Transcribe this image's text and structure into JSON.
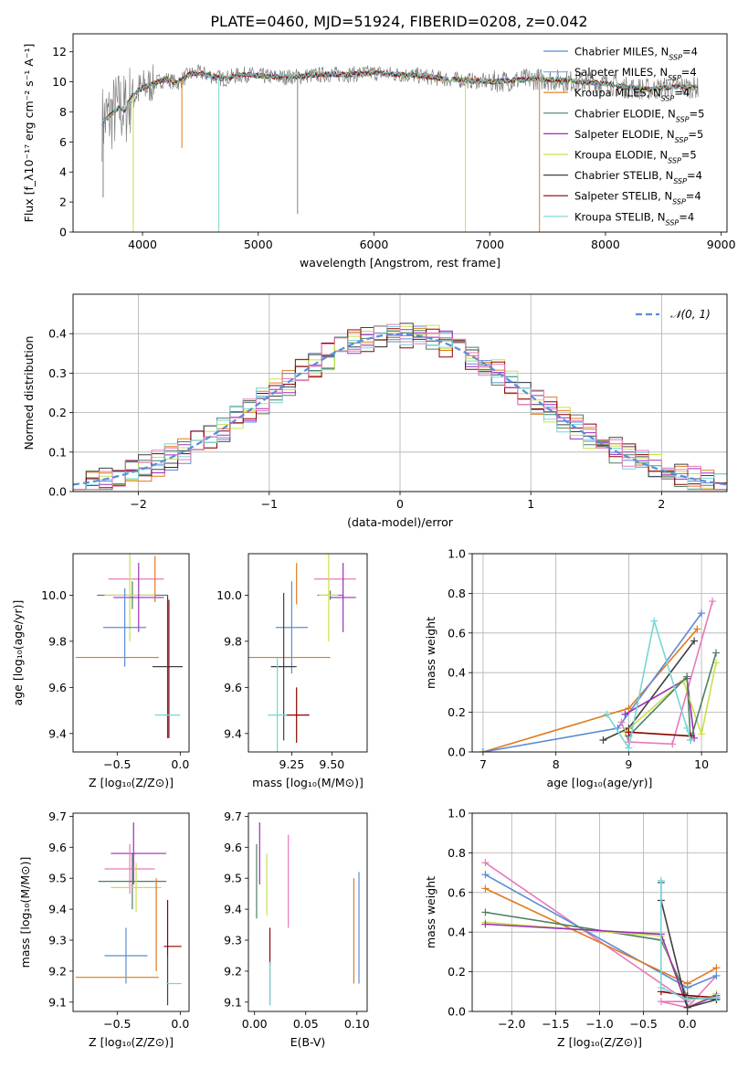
{
  "figure_title": "PLATE=0460, MJD=51924, FIBERID=0208, z=0.042",
  "colors": {
    "chabrier_miles": "#5b8bd8",
    "salpeter_miles": "#7fb2ea",
    "kroupa_miles": "#e07a1f",
    "chabrier_elodie": "#4f7f63",
    "salpeter_elodie": "#9b2fb8",
    "kroupa_elodie": "#c9e14a",
    "chabrier_stelib": "#404040",
    "salpeter_stelib": "#8b0000",
    "kroupa_stelib": "#76d6d6",
    "pink": "#e67ab8",
    "data": "#808080",
    "grid": "#b0b0b0"
  },
  "chart_data": [
    {
      "id": "spectrum",
      "type": "line",
      "title": "PLATE=0460, MJD=51924, FIBERID=0208, z=0.042",
      "xlabel": "wavelength [Angstrom, rest frame]",
      "ylabel": "Flux [f_λ10⁻¹⁷ erg cm⁻² s⁻¹ A⁻¹]",
      "xlim": [
        3400,
        9050
      ],
      "ylim": [
        0,
        13.2
      ],
      "xticks": [
        4000,
        5000,
        6000,
        7000,
        8000,
        9000
      ],
      "yticks": [
        0,
        2,
        4,
        6,
        8,
        10,
        12
      ],
      "grid": false,
      "legend_position": "top-right",
      "legend": [
        {
          "label": "Chabrier MILES, N",
          "sub": "SSP",
          "tail": "=4",
          "color": "#5b8bd8"
        },
        {
          "label": "Salpeter MILES, N",
          "sub": "SSP",
          "tail": "=4",
          "color": "#7fb2ea"
        },
        {
          "label": "Kroupa MILES, N",
          "sub": "SSP",
          "tail": "=4",
          "color": "#e07a1f"
        },
        {
          "label": "Chabrier ELODIE, N",
          "sub": "SSP",
          "tail": "=5",
          "color": "#4f7f63"
        },
        {
          "label": "Salpeter ELODIE, N",
          "sub": "SSP",
          "tail": "=5",
          "color": "#9b2fb8"
        },
        {
          "label": "Kroupa ELODIE, N",
          "sub": "SSP",
          "tail": "=5",
          "color": "#c9e14a"
        },
        {
          "label": "Chabrier STELIB, N",
          "sub": "SSP",
          "tail": "=4",
          "color": "#404040"
        },
        {
          "label": "Salpeter STELIB, N",
          "sub": "SSP",
          "tail": "=4",
          "color": "#8b0000"
        },
        {
          "label": "Kroupa STELIB, N",
          "sub": "SSP",
          "tail": "=4",
          "color": "#76d6d6"
        }
      ],
      "continuum": {
        "x": [
          3650,
          3700,
          3800,
          3850,
          3900,
          4000,
          4100,
          4200,
          4300,
          4400,
          4500,
          4600,
          4700,
          4800,
          4900,
          5000,
          5200,
          5400,
          5600,
          5800,
          6000,
          6200,
          6400,
          6600,
          6800,
          7000,
          7200,
          7400,
          7600,
          7800,
          8000,
          8200,
          8400,
          8600,
          8800
        ],
        "y": [
          7.3,
          7.6,
          8.3,
          8.1,
          9.0,
          9.6,
          9.9,
          10.2,
          9.9,
          10.5,
          10.6,
          10.4,
          10.2,
          10.4,
          10.5,
          10.4,
          10.3,
          10.4,
          10.5,
          10.5,
          10.6,
          10.5,
          10.4,
          10.2,
          10.1,
          10.0,
          10.1,
          10.2,
          10.1,
          10.0,
          9.9,
          9.6,
          9.5,
          9.7,
          9.6
        ]
      },
      "absorption_spikes": [
        {
          "x": 3660,
          "y": 2.3
        },
        {
          "x": 3920,
          "y": 0
        },
        {
          "x": 4340,
          "y": 5.6
        },
        {
          "x": 4660,
          "y": 0
        },
        {
          "x": 5340,
          "y": 1.2
        },
        {
          "x": 6790,
          "y": 0
        },
        {
          "x": 7430,
          "y": 0
        }
      ]
    },
    {
      "id": "residuals",
      "type": "histogram",
      "xlabel": "(data-model)/error",
      "ylabel": "Normed distribution",
      "xlim": [
        -2.5,
        2.5
      ],
      "ylim": [
        0,
        0.5
      ],
      "xticks": [
        -2,
        -1,
        0,
        1,
        2
      ],
      "yticks": [
        0.0,
        0.1,
        0.2,
        0.3,
        0.4
      ],
      "grid": true,
      "legend_position": "top-right",
      "reference_curve": {
        "label": "𝒩(0, 1)",
        "mean": 0,
        "sigma": 1
      },
      "bins": {
        "start": -2.5,
        "width": 0.1,
        "count": 50
      },
      "series_colors": [
        "#5b8bd8",
        "#e07a1f",
        "#4f7f63",
        "#9b2fb8",
        "#c9e14a",
        "#404040",
        "#8b0000",
        "#76d6d6",
        "#e67ab8"
      ]
    },
    {
      "id": "age_vs_Z",
      "type": "errorbar",
      "xlabel": "Z [log₁₀(Z/Z⊙)]",
      "ylabel": "age  [log₁₀(age/yr)]",
      "xlim": [
        -0.85,
        0.07
      ],
      "ylim": [
        9.32,
        10.18
      ],
      "xticks": [
        -0.5,
        0.0
      ],
      "yticks": [
        9.4,
        9.6,
        9.8,
        10.0
      ],
      "points": [
        {
          "x": -0.35,
          "xerr": 0.22,
          "y": 10.07,
          "yerr": 0.0,
          "color": "#e67ab8"
        },
        {
          "x": -0.2,
          "xerr": 0.0,
          "y": 10.07,
          "yerr": 0.1,
          "color": "#e07a1f"
        },
        {
          "x": -0.38,
          "xerr": 0.28,
          "y": 10.0,
          "yerr": 0.06,
          "color": "#4f7f63"
        },
        {
          "x": -0.4,
          "xerr": 0.2,
          "y": 10.0,
          "yerr": 0.2,
          "color": "#c9e14a"
        },
        {
          "x": -0.33,
          "xerr": 0.2,
          "y": 9.99,
          "yerr": 0.15,
          "color": "#9b2fb8"
        },
        {
          "x": -0.44,
          "xerr": 0.17,
          "y": 9.86,
          "yerr": 0.17,
          "color": "#5b8bd8"
        },
        {
          "x": -0.5,
          "xerr": 0.33,
          "y": 9.73,
          "yerr": 0.0,
          "color": "#e07a1f"
        },
        {
          "x": -0.1,
          "xerr": 0.12,
          "y": 9.69,
          "yerr": 0.31,
          "color": "#404040"
        },
        {
          "x": -0.09,
          "xerr": 0.0,
          "y": 9.68,
          "yerr": 0.3,
          "color": "#8b0000"
        },
        {
          "x": -0.1,
          "xerr": 0.1,
          "y": 9.48,
          "yerr": 0.0,
          "color": "#76d6d6"
        }
      ]
    },
    {
      "id": "age_vs_mass",
      "type": "errorbar",
      "xlabel": "mass [log₁₀(M/M⊙)]",
      "ylabel": "",
      "xlim": [
        8.98,
        9.72
      ],
      "ylim": [
        9.32,
        10.18
      ],
      "xticks": [
        9.25,
        9.5
      ],
      "yticks": [
        9.4,
        9.6,
        9.8,
        10.0
      ],
      "points": [
        {
          "x": 9.52,
          "xerr": 0.13,
          "y": 10.07,
          "yerr": 0.0,
          "color": "#e67ab8"
        },
        {
          "x": 9.28,
          "xerr": 0.0,
          "y": 10.05,
          "yerr": 0.09,
          "color": "#e07a1f"
        },
        {
          "x": 9.49,
          "xerr": 0.08,
          "y": 10.0,
          "yerr": 0.02,
          "color": "#4f7f63"
        },
        {
          "x": 9.48,
          "xerr": 0.06,
          "y": 10.0,
          "yerr": 0.2,
          "color": "#c9e14a"
        },
        {
          "x": 9.57,
          "xerr": 0.08,
          "y": 9.99,
          "yerr": 0.15,
          "color": "#9b2fb8"
        },
        {
          "x": 9.25,
          "xerr": 0.1,
          "y": 9.86,
          "yerr": 0.2,
          "color": "#5b8bd8"
        },
        {
          "x": 9.18,
          "xerr": 0.31,
          "y": 9.73,
          "yerr": 0.0,
          "color": "#e07a1f"
        },
        {
          "x": 9.2,
          "xerr": 0.08,
          "y": 9.69,
          "yerr": 0.32,
          "color": "#404040"
        },
        {
          "x": 9.28,
          "xerr": 0.08,
          "y": 9.48,
          "yerr": 0.12,
          "color": "#8b0000"
        },
        {
          "x": 9.16,
          "xerr": 0.06,
          "y": 9.48,
          "yerr": 0.25,
          "color": "#76d6d6"
        }
      ]
    },
    {
      "id": "weight_vs_age",
      "type": "line",
      "xlabel": "age  [log₁₀(age/yr)]",
      "ylabel": "mass weight",
      "xlim": [
        6.85,
        10.35
      ],
      "ylim": [
        0,
        1.0
      ],
      "xticks": [
        7,
        8,
        9,
        10
      ],
      "yticks": [
        0.0,
        0.2,
        0.4,
        0.6,
        0.8,
        1.0
      ],
      "grid": true,
      "series": [
        {
          "color": "#e07a1f",
          "x": [
            7.0,
            9.0,
            9.94
          ],
          "y": [
            0.0,
            0.22,
            0.62
          ]
        },
        {
          "color": "#5b8bd8",
          "x": [
            7.0,
            8.85,
            10.0
          ],
          "y": [
            0.0,
            0.12,
            0.7
          ]
        },
        {
          "color": "#e67ab8",
          "x": [
            8.9,
            9.0,
            9.6,
            10.15
          ],
          "y": [
            0.15,
            0.05,
            0.04,
            0.76
          ]
        },
        {
          "color": "#404040",
          "x": [
            8.65,
            9.0,
            9.9
          ],
          "y": [
            0.06,
            0.12,
            0.56
          ]
        },
        {
          "color": "#9b2fb8",
          "x": [
            8.95,
            9.8,
            9.9
          ],
          "y": [
            0.19,
            0.37,
            0.07
          ]
        },
        {
          "color": "#c9e14a",
          "x": [
            8.95,
            9.75,
            10.0,
            10.2
          ],
          "y": [
            0.1,
            0.36,
            0.09,
            0.45
          ]
        },
        {
          "color": "#4f7f63",
          "x": [
            9.0,
            9.8,
            9.85,
            10.2
          ],
          "y": [
            0.08,
            0.38,
            0.06,
            0.5
          ]
        },
        {
          "color": "#8b0000",
          "x": [
            9.0,
            9.85
          ],
          "y": [
            0.1,
            0.08
          ]
        },
        {
          "color": "#76d6d6",
          "x": [
            8.7,
            9.0,
            9.35,
            9.8,
            9.85
          ],
          "y": [
            0.19,
            0.02,
            0.66,
            0.12,
            0.06
          ]
        }
      ]
    },
    {
      "id": "mass_vs_Z",
      "type": "errorbar",
      "xlabel": "Z [log₁₀(Z/Z⊙)]",
      "ylabel": "mass [log₁₀(M/M⊙)]",
      "xlim": [
        -0.85,
        0.07
      ],
      "ylim": [
        9.07,
        9.71
      ],
      "xticks": [
        -0.5,
        0.0
      ],
      "yticks": [
        9.1,
        9.2,
        9.3,
        9.4,
        9.5,
        9.6,
        9.7
      ],
      "points": [
        {
          "x": -0.33,
          "xerr": 0.22,
          "y": 9.58,
          "yerr": 0.0,
          "color": "#9b2fb8"
        },
        {
          "x": -0.37,
          "xerr": 0.02,
          "y": 9.58,
          "yerr": 0.1,
          "color": "#9b2fb8"
        },
        {
          "x": -0.4,
          "xerr": 0.2,
          "y": 9.53,
          "yerr": 0.08,
          "color": "#e67ab8"
        },
        {
          "x": -0.38,
          "xerr": 0.27,
          "y": 9.49,
          "yerr": 0.09,
          "color": "#4f7f63"
        },
        {
          "x": -0.35,
          "xerr": 0.2,
          "y": 9.47,
          "yerr": 0.08,
          "color": "#c9e14a"
        },
        {
          "x": -0.19,
          "xerr": 0.0,
          "y": 9.35,
          "yerr": 0.15,
          "color": "#e07a1f"
        },
        {
          "x": -0.1,
          "xerr": 0.0,
          "y": 9.34,
          "yerr": 0.09,
          "color": "#8b0000"
        },
        {
          "x": -0.06,
          "xerr": 0.07,
          "y": 9.28,
          "yerr": 0.0,
          "color": "#8b0000"
        },
        {
          "x": -0.43,
          "xerr": 0.17,
          "y": 9.25,
          "yerr": 0.09,
          "color": "#5b8bd8"
        },
        {
          "x": -0.5,
          "xerr": 0.33,
          "y": 9.18,
          "yerr": 0.0,
          "color": "#e07a1f"
        },
        {
          "x": -0.1,
          "xerr": 0.0,
          "y": 9.17,
          "yerr": 0.08,
          "color": "#404040"
        },
        {
          "x": -0.05,
          "xerr": 0.06,
          "y": 9.16,
          "yerr": 0.0,
          "color": "#76d6d6"
        }
      ]
    },
    {
      "id": "mass_vs_ebv",
      "type": "errorbar",
      "xlabel": "E(B-V)",
      "ylabel": "",
      "xlim": [
        -0.006,
        0.11
      ],
      "ylim": [
        9.07,
        9.71
      ],
      "xticks": [
        0.0,
        0.05,
        0.1
      ],
      "yticks": [
        9.1,
        9.2,
        9.3,
        9.4,
        9.5,
        9.6,
        9.7
      ],
      "points": [
        {
          "x": 0.005,
          "xerr": 0.0,
          "y": 9.58,
          "yerr": 0.1,
          "color": "#9b2fb8"
        },
        {
          "x": 0.002,
          "xerr": 0.0,
          "y": 9.49,
          "yerr": 0.12,
          "color": "#4f7f63"
        },
        {
          "x": 0.033,
          "xerr": 0.0,
          "y": 9.49,
          "yerr": 0.15,
          "color": "#e67ab8"
        },
        {
          "x": 0.012,
          "xerr": 0.0,
          "y": 9.48,
          "yerr": 0.1,
          "color": "#c9e14a"
        },
        {
          "x": 0.097,
          "xerr": 0.0,
          "y": 9.33,
          "yerr": 0.17,
          "color": "#e07a1f"
        },
        {
          "x": 0.102,
          "xerr": 0.0,
          "y": 9.34,
          "yerr": 0.18,
          "color": "#5b8bd8"
        },
        {
          "x": 0.015,
          "xerr": 0.0,
          "y": 9.28,
          "yerr": 0.06,
          "color": "#8b0000"
        },
        {
          "x": 0.015,
          "xerr": 0.0,
          "y": 9.16,
          "yerr": 0.07,
          "color": "#404040"
        },
        {
          "x": 0.015,
          "xerr": 0.0,
          "y": 9.16,
          "yerr": 0.07,
          "color": "#76d6d6"
        }
      ]
    },
    {
      "id": "weight_vs_Z",
      "type": "line",
      "xlabel": "Z [log₁₀(Z/Z⊙)]",
      "ylabel": "mass weight",
      "xlim": [
        -2.45,
        0.45
      ],
      "ylim": [
        0,
        1.0
      ],
      "xticks": [
        -2.0,
        -1.5,
        -1.0,
        -0.5,
        0.0
      ],
      "yticks": [
        0.0,
        0.2,
        0.4,
        0.6,
        0.8,
        1.0
      ],
      "grid": true,
      "series": [
        {
          "color": "#e67ab8",
          "x": [
            -2.3,
            0.0,
            -0.3,
            0.0,
            0.33
          ],
          "y": [
            0.75,
            0.05,
            0.05,
            0.02,
            0.18
          ]
        },
        {
          "color": "#5b8bd8",
          "x": [
            -2.3,
            0.0,
            0.33
          ],
          "y": [
            0.69,
            0.12,
            0.18
          ]
        },
        {
          "color": "#e07a1f",
          "x": [
            -2.3,
            0.0,
            0.33
          ],
          "y": [
            0.62,
            0.14,
            0.22
          ]
        },
        {
          "color": "#4f7f63",
          "x": [
            -2.3,
            -0.3,
            0.0,
            0.33
          ],
          "y": [
            0.5,
            0.36,
            0.07,
            0.06
          ]
        },
        {
          "color": "#c9e14a",
          "x": [
            -2.3,
            -0.3,
            0.0,
            0.33
          ],
          "y": [
            0.45,
            0.38,
            0.02,
            0.09
          ]
        },
        {
          "color": "#9b2fb8",
          "x": [
            -2.3,
            -0.3,
            0.0,
            0.33
          ],
          "y": [
            0.44,
            0.39,
            0.02,
            0.08
          ]
        },
        {
          "color": "#404040",
          "x": [
            -0.3,
            -0.3,
            0.0,
            0.33
          ],
          "y": [
            0.65,
            0.56,
            0.02,
            0.06
          ]
        },
        {
          "color": "#8b0000",
          "x": [
            -0.3,
            0.0,
            0.33
          ],
          "y": [
            0.1,
            0.08,
            0.07
          ]
        },
        {
          "color": "#76d6d6",
          "x": [
            -0.3,
            -0.3,
            0.0,
            0.33
          ],
          "y": [
            0.66,
            0.12,
            0.06,
            0.07
          ]
        }
      ]
    }
  ]
}
